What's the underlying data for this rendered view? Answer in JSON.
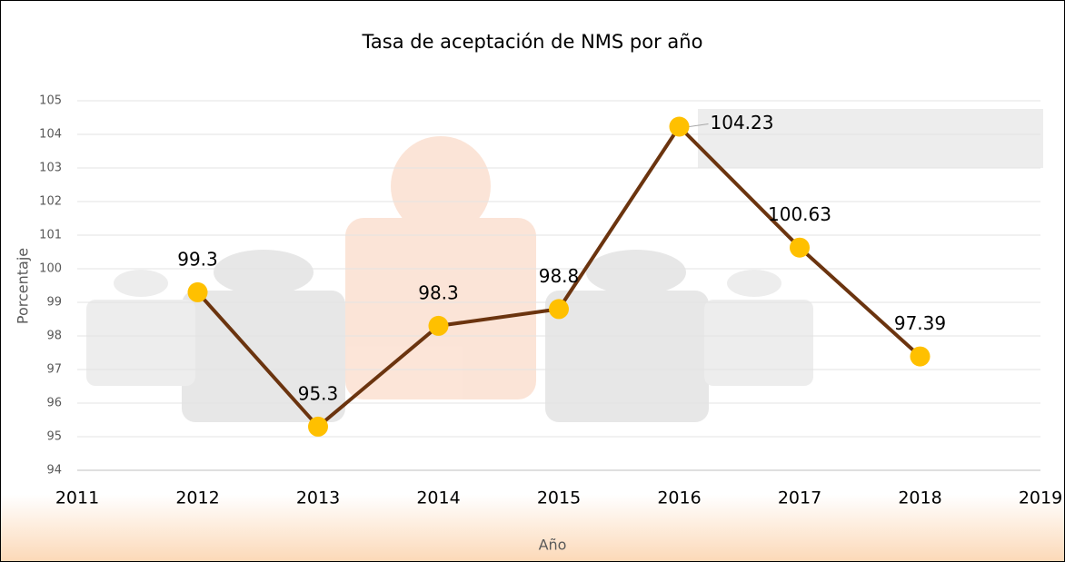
{
  "chart_data": {
    "type": "line",
    "title": "Tasa de aceptación de NMS por año",
    "x_label": "Año",
    "y_label": "Porcentaje",
    "x": [
      2012,
      2013,
      2014,
      2015,
      2016,
      2017,
      2018
    ],
    "values": [
      99.3,
      95.3,
      98.3,
      98.8,
      104.23,
      100.63,
      97.39
    ],
    "color": "#6b340f",
    "marker_color": "#ffc000",
    "xlim": [
      2011,
      2019
    ],
    "xticks": [
      2011,
      2012,
      2013,
      2014,
      2015,
      2016,
      2017,
      2018,
      2019
    ],
    "ylim": [
      94,
      105
    ],
    "yticks": [
      94,
      95,
      96,
      97,
      98,
      99,
      100,
      101,
      102,
      103,
      104,
      105
    ],
    "grid": true
  }
}
